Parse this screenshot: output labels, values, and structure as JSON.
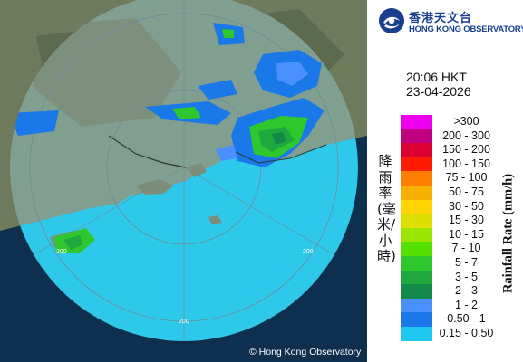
{
  "agency": {
    "name_zh": "香港天文台",
    "name_en": "HONG KONG OBSERVATORY"
  },
  "timestamp": {
    "time": "20:06 HKT",
    "date": "23-04-2026"
  },
  "legend": {
    "title_zh": "降雨率(毫米/小時)",
    "title_en": "Rainfall Rate (mm/h)",
    "bins": [
      {
        "label": ">300",
        "color": "#ee00ee"
      },
      {
        "label": "200 - 300",
        "color": "#c00080"
      },
      {
        "label": "150 - 200",
        "color": "#dd0033"
      },
      {
        "label": "100 - 150",
        "color": "#ff1a00"
      },
      {
        "label": "75 - 100",
        "color": "#ff8000"
      },
      {
        "label": "50 - 75",
        "color": "#f5b000"
      },
      {
        "label": "30 - 50",
        "color": "#ffd400"
      },
      {
        "label": "15 - 30",
        "color": "#dede00"
      },
      {
        "label": "10 - 15",
        "color": "#9ae600"
      },
      {
        "label": "7 - 10",
        "color": "#55e000"
      },
      {
        "label": "5 - 7",
        "color": "#2ec82e"
      },
      {
        "label": "3 - 5",
        "color": "#1ea83e"
      },
      {
        "label": "2 - 3",
        "color": "#138a4a"
      },
      {
        "label": "1 - 2",
        "color": "#4a90ff"
      },
      {
        "label": "0.50 - 1",
        "color": "#1a78e8"
      },
      {
        "label": "0.15 - 0.50",
        "color": "#1ec8f0"
      }
    ]
  },
  "map": {
    "range_ring_labels": [
      "200",
      "200",
      "200"
    ],
    "copyright": "© Hong Kong Observatory"
  }
}
